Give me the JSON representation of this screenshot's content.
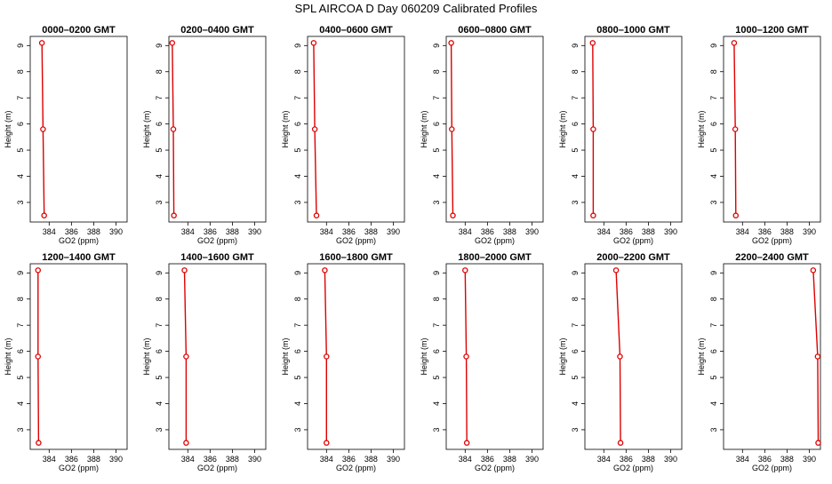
{
  "figure": {
    "title": "SPL AIRCOA D  Day 060209  Calibrated Profiles"
  },
  "chart_data": {
    "type": "line",
    "xlabel": "GO2 (ppm)",
    "ylabel": "Height (m)",
    "xlim": [
      382.3,
      391.0
    ],
    "ylim": [
      2.25,
      9.35
    ],
    "xticks": [
      384,
      386,
      388,
      390
    ],
    "yticks": [
      3,
      4,
      5,
      6,
      7,
      8,
      9
    ],
    "line_color": "#dd0000",
    "panels": [
      {
        "title": "0000–0200 GMT",
        "heights": [
          9.1,
          5.8,
          2.5
        ],
        "values": [
          383.35,
          383.45,
          383.55
        ]
      },
      {
        "title": "0200–0400 GMT",
        "heights": [
          9.1,
          5.8,
          2.5
        ],
        "values": [
          382.6,
          382.7,
          382.75
        ]
      },
      {
        "title": "0400–0600 GMT",
        "heights": [
          9.1,
          5.8,
          2.5
        ],
        "values": [
          382.85,
          382.95,
          383.1
        ]
      },
      {
        "title": "0600–0800 GMT",
        "heights": [
          9.1,
          5.8,
          2.5
        ],
        "values": [
          382.75,
          382.8,
          382.9
        ]
      },
      {
        "title": "0800–1000 GMT",
        "heights": [
          9.1,
          5.8,
          2.5
        ],
        "values": [
          383.0,
          383.05,
          383.05
        ]
      },
      {
        "title": "1000–1200 GMT",
        "heights": [
          9.1,
          5.8,
          2.5
        ],
        "values": [
          383.25,
          383.35,
          383.4
        ]
      },
      {
        "title": "1200–1400 GMT",
        "heights": [
          9.1,
          5.8,
          2.5
        ],
        "values": [
          383.0,
          383.0,
          383.05
        ]
      },
      {
        "title": "1400–1600 GMT",
        "heights": [
          9.1,
          5.8,
          2.5
        ],
        "values": [
          383.7,
          383.85,
          383.85
        ]
      },
      {
        "title": "1600–1800 GMT",
        "heights": [
          9.1,
          5.8,
          2.5
        ],
        "values": [
          383.85,
          384.0,
          384.0
        ]
      },
      {
        "title": "1800–2000 GMT",
        "heights": [
          9.1,
          5.8,
          2.5
        ],
        "values": [
          384.0,
          384.1,
          384.15
        ]
      },
      {
        "title": "2000–2200 GMT",
        "heights": [
          9.1,
          5.8,
          2.5
        ],
        "values": [
          385.1,
          385.45,
          385.5
        ]
      },
      {
        "title": "2200–2400 GMT",
        "heights": [
          9.1,
          5.8,
          2.5
        ],
        "values": [
          390.35,
          390.75,
          390.8
        ]
      }
    ]
  }
}
